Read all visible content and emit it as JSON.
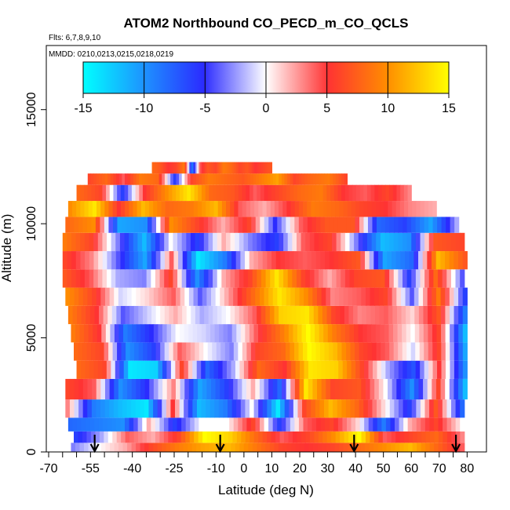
{
  "chart_data": {
    "type": "heatmap",
    "title": "ATOM2 Northbound CO_PECD_m_CO_QCLS",
    "subtitle_flights": "Flts: 6,7,8,9,10",
    "subtitle_dates": "MMDD: 0210,0213,0215,0218,0219",
    "xlabel": "Latitude (deg N)",
    "ylabel": "Altitude (m)",
    "xlim": [
      -70,
      83
    ],
    "ylim": [
      0,
      17500
    ],
    "x_ticks": [
      -70,
      -55,
      -40,
      -25,
      -10,
      0,
      10,
      20,
      30,
      40,
      50,
      60,
      70,
      80
    ],
    "x_minor_ticks": [
      -65,
      -60,
      -50,
      -45,
      -35,
      -30,
      -20,
      -15,
      -5,
      5,
      15,
      25,
      35,
      45,
      55,
      65,
      75
    ],
    "x_tick_labels": [
      "-70",
      "-55",
      "-40",
      "-25",
      "-10",
      "0",
      "10",
      "20",
      "30",
      "40",
      "50",
      "60",
      "70",
      "80"
    ],
    "y_ticks": [
      0,
      5000,
      10000,
      15000
    ],
    "y_tick_labels": [
      "0",
      "5000",
      "10000",
      "15000"
    ],
    "colorbar": {
      "min": -15,
      "max": 15,
      "ticks": [
        -15,
        -10,
        -5,
        0,
        5,
        10,
        15
      ],
      "tick_labels": [
        "-15",
        "-10",
        "-5",
        "0",
        "5",
        "10",
        "15"
      ],
      "colors": [
        "#00ffff",
        "#1e90ff",
        "#2b2bff",
        "#ffffff",
        "#ff3333",
        "#ff8c00",
        "#ffff00"
      ]
    },
    "arrow_latitudes": [
      -53.5,
      -8.5,
      39.5,
      76
    ],
    "profile_bands": [
      {
        "alt_min": 0,
        "alt_max": 400,
        "lat_start": -62,
        "lat_end": 79,
        "values": [
          -3,
          0,
          2,
          6,
          9,
          11,
          12,
          9,
          6,
          5,
          6,
          8,
          10,
          12,
          8,
          4
        ]
      },
      {
        "alt_min": 400,
        "alt_max": 900,
        "lat_start": -61,
        "lat_end": 79,
        "values": [
          -6,
          -2,
          4,
          2,
          6,
          15,
          13,
          8,
          4,
          6,
          10,
          15,
          4,
          6,
          8,
          3
        ]
      },
      {
        "alt_min": 900,
        "alt_max": 1500,
        "lat_start": -63,
        "lat_end": 79,
        "values": [
          -8,
          -9,
          -10,
          2,
          -6,
          0,
          0,
          6,
          -6,
          4,
          6,
          1,
          -9,
          2,
          6,
          0
        ]
      },
      {
        "alt_min": 1500,
        "alt_max": 2300,
        "lat_start": -64,
        "lat_end": 79,
        "values": [
          3,
          -9,
          -12,
          -14,
          5,
          -12,
          -9,
          0,
          -14,
          6,
          12,
          8,
          1,
          -6,
          7,
          -8
        ]
      },
      {
        "alt_min": 2300,
        "alt_max": 3200,
        "lat_start": -64,
        "lat_end": 80,
        "values": [
          6,
          4,
          -10,
          -5,
          3,
          -11,
          -6,
          2,
          -8,
          14,
          6,
          7,
          0,
          -10,
          6,
          -12
        ]
      },
      {
        "alt_min": 3200,
        "alt_max": 4000,
        "lat_start": -60,
        "lat_end": 80,
        "values": [
          8,
          6,
          -14,
          -13,
          6,
          -8,
          -2,
          8,
          5,
          14,
          13,
          6,
          -2,
          -7,
          5,
          -10
        ]
      },
      {
        "alt_min": 4000,
        "alt_max": 4800,
        "lat_start": -61,
        "lat_end": 80,
        "values": [
          8,
          6,
          -10,
          -6,
          4,
          0,
          -3,
          6,
          8,
          15,
          12,
          6,
          4,
          -1,
          6,
          -11
        ]
      },
      {
        "alt_min": 4800,
        "alt_max": 5600,
        "lat_start": -62,
        "lat_end": 80,
        "values": [
          9,
          5,
          -9,
          -5,
          0,
          -1,
          -3,
          4,
          9,
          15,
          9,
          5,
          4,
          0,
          6,
          -12
        ]
      },
      {
        "alt_min": 5600,
        "alt_max": 6400,
        "lat_start": -63,
        "lat_end": 80,
        "values": [
          9,
          5,
          -4,
          -1,
          2,
          -2,
          0,
          4,
          13,
          14,
          6,
          3,
          4,
          1,
          7,
          -9
        ]
      },
      {
        "alt_min": 6400,
        "alt_max": 7200,
        "lat_start": -64,
        "lat_end": 80,
        "values": [
          10,
          6,
          -1,
          1,
          4,
          -4,
          2,
          8,
          14,
          10,
          3,
          4,
          6,
          -4,
          9,
          -6
        ]
      },
      {
        "alt_min": 7200,
        "alt_max": 8000,
        "lat_start": -65,
        "lat_end": 79,
        "values": [
          7,
          4,
          -2,
          -3,
          6,
          -10,
          2,
          6,
          14,
          6,
          2,
          6,
          7,
          -6,
          8,
          -4
        ]
      },
      {
        "alt_min": 8000,
        "alt_max": 8800,
        "lat_start": -65,
        "lat_end": 80,
        "values": [
          6,
          3,
          -4,
          -11,
          4,
          -14,
          -9,
          2,
          5,
          4,
          5,
          7,
          -11,
          -8,
          12,
          7
        ]
      },
      {
        "alt_min": 8800,
        "alt_max": 9600,
        "lat_start": -65,
        "lat_end": 79,
        "values": [
          9,
          6,
          -3,
          -12,
          0,
          -6,
          2,
          -3,
          -6,
          4,
          6,
          -3,
          -12,
          -10,
          7,
          6
        ]
      },
      {
        "alt_min": 9600,
        "alt_max": 10300,
        "lat_start": -64,
        "lat_end": 77,
        "values": [
          8,
          10,
          -11,
          -10,
          10,
          6,
          2,
          6,
          -5,
          4,
          7,
          7,
          -8,
          -6,
          -11,
          -2
        ]
      },
      {
        "alt_min": 10300,
        "alt_max": 11000,
        "lat_start": -63,
        "lat_end": 69,
        "values": [
          10,
          14,
          5,
          12,
          8,
          9,
          12,
          4,
          2,
          5,
          9,
          8,
          6,
          5,
          3,
          2
        ]
      },
      {
        "alt_min": 11000,
        "alt_max": 11700,
        "lat_start": -60,
        "lat_end": 60,
        "values": [
          8,
          6,
          -6,
          5,
          10,
          14,
          8,
          7,
          4,
          6,
          8,
          9,
          5,
          4,
          6,
          3
        ]
      },
      {
        "alt_min": 11700,
        "alt_max": 12200,
        "lat_start": -56,
        "lat_end": 37,
        "values": [
          6,
          8,
          4,
          9,
          8,
          -6,
          6,
          9,
          8,
          7,
          9,
          11,
          6,
          8,
          9,
          6
        ]
      },
      {
        "alt_min": 12200,
        "alt_max": 12700,
        "lat_start": -33,
        "lat_end": 10,
        "values": [
          8,
          7,
          5,
          6,
          9,
          -9,
          4,
          7,
          6,
          9,
          8,
          6,
          7,
          5,
          6,
          7
        ]
      }
    ]
  }
}
